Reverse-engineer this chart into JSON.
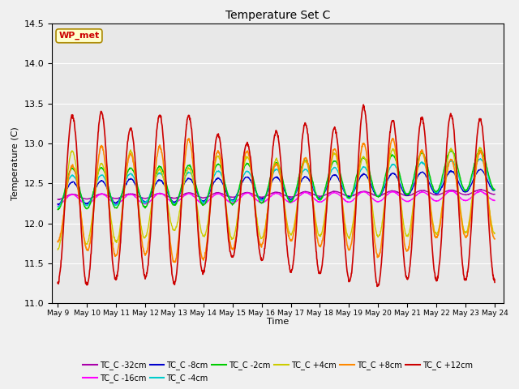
{
  "title": "Temperature Set C",
  "xlabel": "Time",
  "ylabel": "Temperature (C)",
  "ylim": [
    11.0,
    14.5
  ],
  "background_color": "#f0f0f0",
  "plot_bg": "#e8e8e8",
  "grid_color": "white",
  "series_order": [
    "TC_C -32cm",
    "TC_C -16cm",
    "TC_C -8cm",
    "TC_C -4cm",
    "TC_C -2cm",
    "TC_C +4cm",
    "TC_C +8cm",
    "TC_C +12cm"
  ],
  "series_colors": {
    "TC_C -32cm": "#aa00aa",
    "TC_C -16cm": "#ff00ff",
    "TC_C -8cm": "#0000cc",
    "TC_C -4cm": "#00cccc",
    "TC_C -2cm": "#00cc00",
    "TC_C +4cm": "#cccc00",
    "TC_C +8cm": "#ff8800",
    "TC_C +12cm": "#cc0000"
  },
  "series_lw": {
    "TC_C -32cm": 1.0,
    "TC_C -16cm": 1.0,
    "TC_C -8cm": 1.0,
    "TC_C -4cm": 1.0,
    "TC_C -2cm": 1.0,
    "TC_C +4cm": 1.0,
    "TC_C +8cm": 1.2,
    "TC_C +12cm": 1.2
  },
  "wp_met_box": {
    "text": "WP_met",
    "facecolor": "#ffffcc",
    "edgecolor": "#aa8800",
    "textcolor": "#cc0000",
    "fontsize": 8
  },
  "tick_labels": [
    "May 9",
    "May 10",
    "May 11",
    "May 12",
    "May 13",
    "May 14",
    "May 15",
    "May 16",
    "May 17",
    "May 18",
    "May 19",
    "May 20",
    "May 21",
    "May 22",
    "May 23",
    "May 24"
  ],
  "tick_positions": [
    0,
    1,
    2,
    3,
    4,
    5,
    6,
    7,
    8,
    9,
    10,
    11,
    12,
    13,
    14,
    15
  ],
  "yticks": [
    11.0,
    11.5,
    12.0,
    12.5,
    13.0,
    13.5,
    14.0,
    14.5
  ]
}
